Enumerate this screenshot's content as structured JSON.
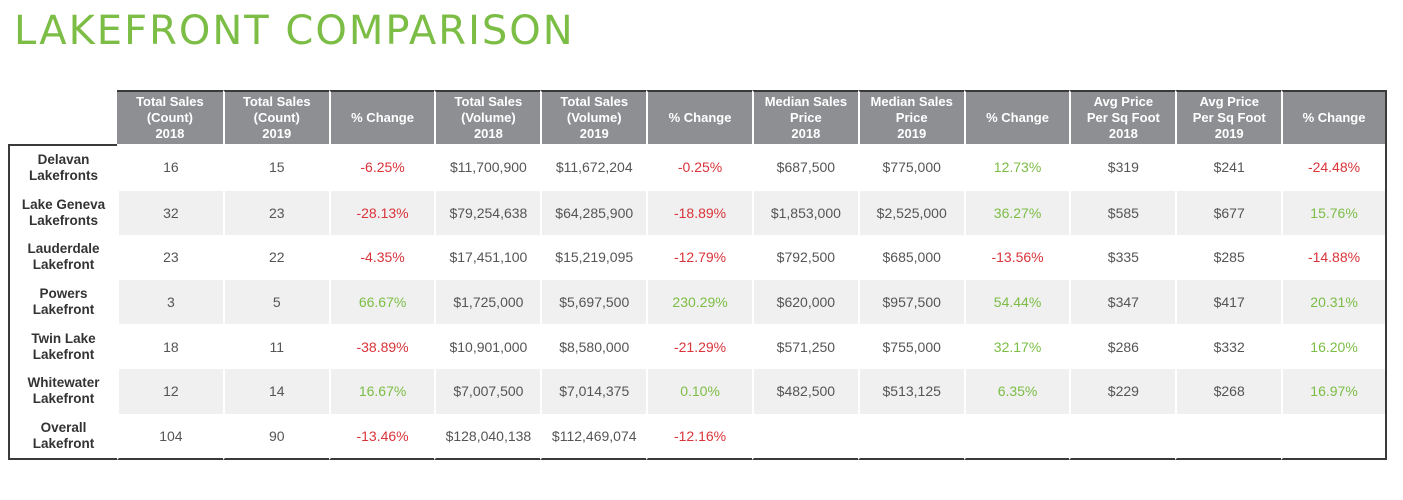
{
  "title": "LAKEFRONT COMPARISON",
  "colors": {
    "title": "#7cbd45",
    "negative": "#d9343a",
    "positive": "#7cbd45",
    "header": "#8d8f92"
  },
  "columns": [
    [
      "Total Sales",
      "(Count)",
      "2018"
    ],
    [
      "Total Sales",
      "(Count)",
      "2019"
    ],
    [
      "% Change"
    ],
    [
      "Total Sales",
      "(Volume)",
      "2018"
    ],
    [
      "Total Sales",
      "(Volume)",
      "2019"
    ],
    [
      "% Change"
    ],
    [
      "Median Sales",
      "Price",
      "2018"
    ],
    [
      "Median Sales",
      "Price",
      "2019"
    ],
    [
      "% Change"
    ],
    [
      "Avg Price",
      "Per Sq Foot",
      "2018"
    ],
    [
      "Avg Price",
      "Per Sq Foot",
      "2019"
    ],
    [
      "% Change"
    ]
  ],
  "rows": [
    {
      "label": [
        "Delavan",
        "Lakefronts"
      ],
      "values": [
        "16",
        "15",
        "-6.25%",
        "$11,700,900",
        "$11,672,204",
        "-0.25%",
        "$687,500",
        "$775,000",
        "12.73%",
        "$319",
        "$241",
        "-24.48%"
      ]
    },
    {
      "label": [
        "Lake Geneva",
        "Lakefronts"
      ],
      "values": [
        "32",
        "23",
        "-28.13%",
        "$79,254,638",
        "$64,285,900",
        "-18.89%",
        "$1,853,000",
        "$2,525,000",
        "36.27%",
        "$585",
        "$677",
        "15.76%"
      ]
    },
    {
      "label": [
        "Lauderdale",
        "Lakefront"
      ],
      "values": [
        "23",
        "22",
        "-4.35%",
        "$17,451,100",
        "$15,219,095",
        "-12.79%",
        "$792,500",
        "$685,000",
        "-13.56%",
        "$335",
        "$285",
        "-14.88%"
      ]
    },
    {
      "label": [
        "Powers",
        "Lakefront"
      ],
      "values": [
        "3",
        "5",
        "66.67%",
        "$1,725,000",
        "$5,697,500",
        "230.29%",
        "$620,000",
        "$957,500",
        "54.44%",
        "$347",
        "$417",
        "20.31%"
      ]
    },
    {
      "label": [
        "Twin Lake",
        "Lakefront"
      ],
      "values": [
        "18",
        "11",
        "-38.89%",
        "$10,901,000",
        "$8,580,000",
        "-21.29%",
        "$571,250",
        "$755,000",
        "32.17%",
        "$286",
        "$332",
        "16.20%"
      ]
    },
    {
      "label": [
        "Whitewater",
        "Lakefront"
      ],
      "values": [
        "12",
        "14",
        "16.67%",
        "$7,007,500",
        "$7,014,375",
        "0.10%",
        "$482,500",
        "$513,125",
        "6.35%",
        "$229",
        "$268",
        "16.97%"
      ]
    },
    {
      "label": [
        "Overall",
        "Lakefront"
      ],
      "values": [
        "104",
        "90",
        "-13.46%",
        "$128,040,138",
        "$112,469,074",
        "-12.16%",
        "",
        "",
        "",
        "",
        "",
        ""
      ]
    }
  ]
}
